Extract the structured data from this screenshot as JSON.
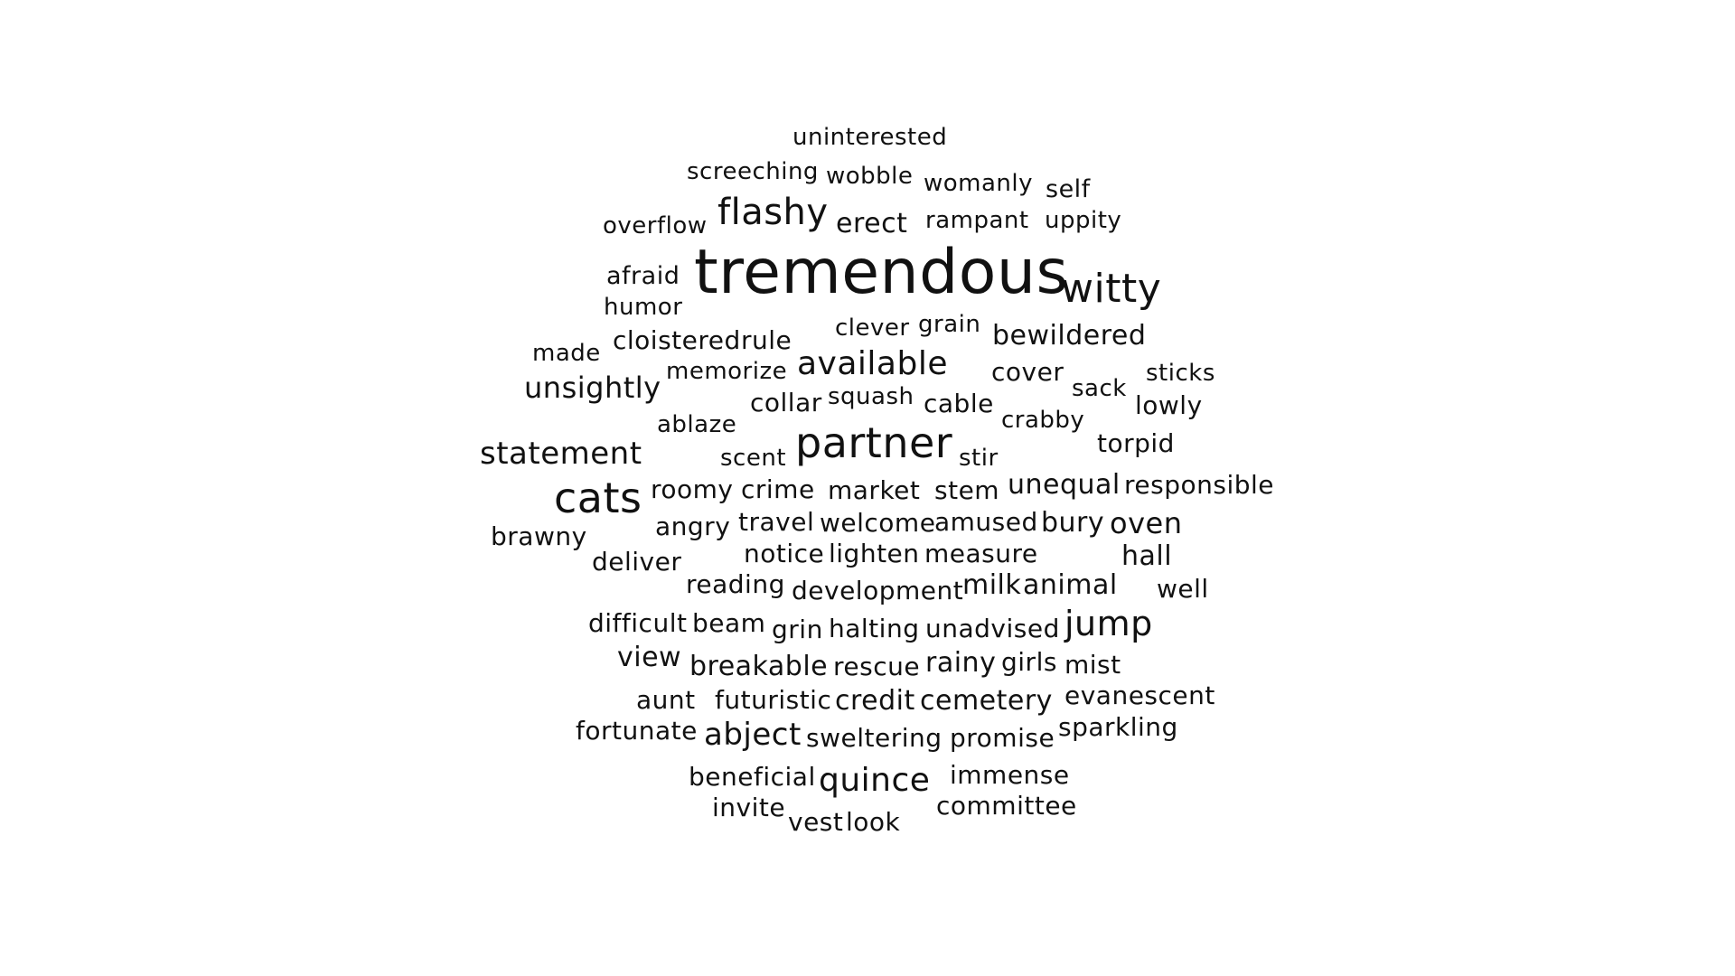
{
  "words": [
    "uninterested",
    "screeching",
    "wobble",
    "womanly",
    "self",
    "overflow",
    "flashy",
    "erect",
    "rampant",
    "uppity",
    "afraid",
    "tremendous",
    "witty",
    "humor",
    "made",
    "cloistered",
    "rule",
    "clever",
    "grain",
    "bewildered",
    "memorize",
    "available",
    "cover",
    "sticks",
    "unsightly",
    "collar",
    "squash",
    "cable",
    "sack",
    "lowly",
    "ablaze",
    "crabby",
    "torpid",
    "statement",
    "scent",
    "partner",
    "stir",
    "cats",
    "roomy",
    "crime",
    "market",
    "stem",
    "unequal",
    "responsible",
    "angry",
    "travel",
    "welcome",
    "amused",
    "bury",
    "oven",
    "brawny",
    "deliver",
    "notice",
    "lighten",
    "measure",
    "hall",
    "reading",
    "development",
    "milk",
    "animal",
    "well",
    "difficult",
    "beam",
    "grin",
    "halting",
    "unadvised",
    "jump",
    "view",
    "breakable",
    "rescue",
    "rainy",
    "girls",
    "mist",
    "aunt",
    "futuristic",
    "credit",
    "cemetery",
    "evanescent",
    "fortunate",
    "abject",
    "sweltering",
    "promise",
    "sparkling",
    "beneficial",
    "quince",
    "immense",
    "invite",
    "vest",
    "look",
    "committee"
  ],
  "colors": {
    "text": "#111111",
    "background": "#ffffff"
  }
}
